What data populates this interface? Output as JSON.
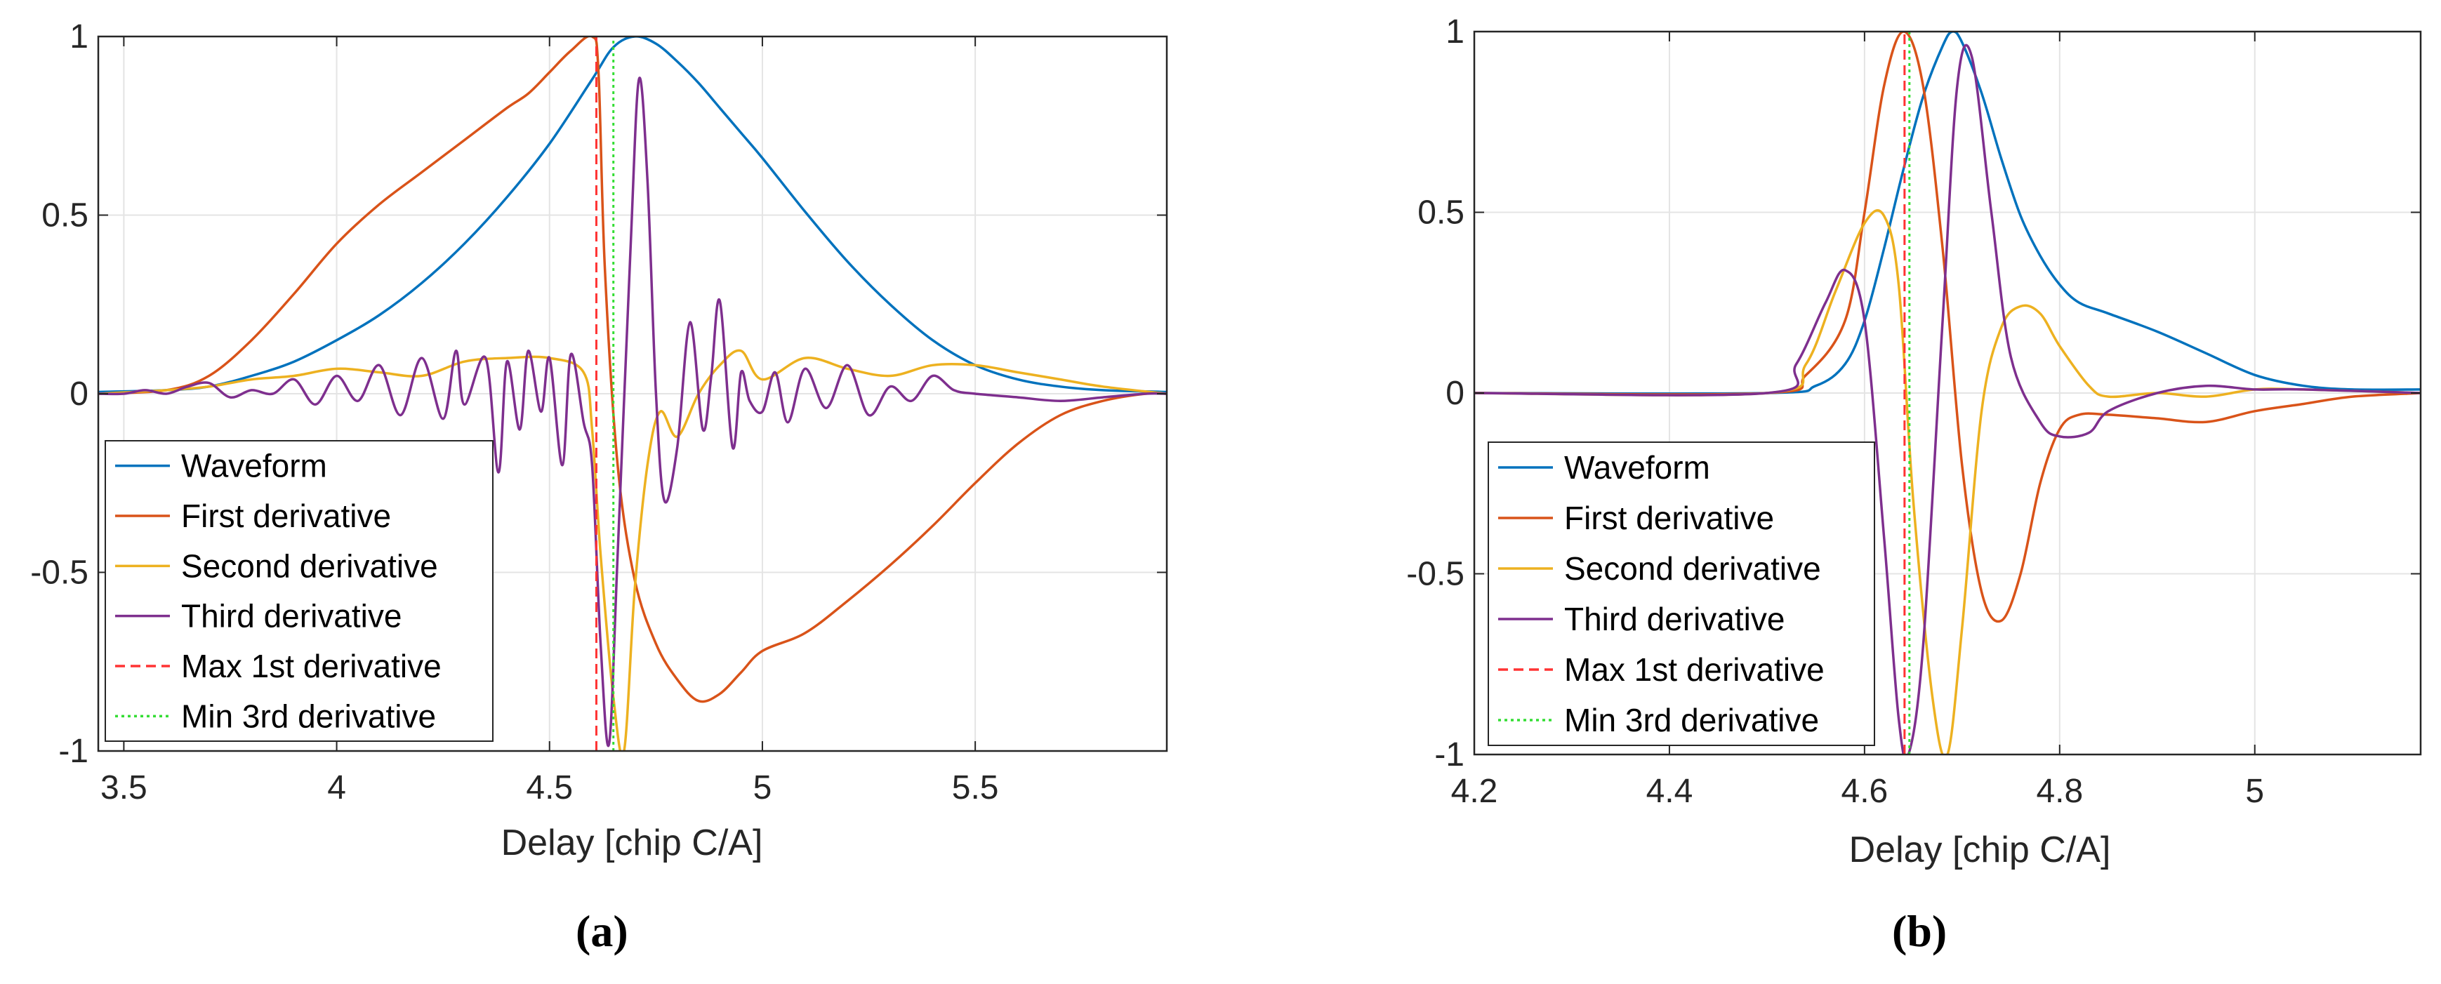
{
  "chart_data": [
    {
      "type": "line",
      "caption": "(a)",
      "xlabel": "Delay [chip C/A]",
      "ylabel": "",
      "xlim": [
        3.44,
        5.95
      ],
      "ylim": [
        -1,
        1
      ],
      "xticks": [
        3.5,
        4,
        4.5,
        5,
        5.5
      ],
      "xtick_labels": [
        "3.5",
        "4",
        "4.5",
        "5",
        "5.5"
      ],
      "yticks": [
        -1,
        -0.5,
        0,
        0.5,
        1
      ],
      "ytick_labels": [
        "-1",
        "-0.5",
        "0",
        "0.5",
        "1"
      ],
      "grid": true,
      "legend_position": "bottom-left",
      "series": [
        {
          "name": "Waveform",
          "color": "#0072BD",
          "style": "solid",
          "x": [
            3.44,
            3.6,
            3.7,
            3.8,
            3.9,
            4.0,
            4.1,
            4.2,
            4.3,
            4.4,
            4.5,
            4.6,
            4.65,
            4.7,
            4.75,
            4.8,
            4.85,
            4.9,
            4.95,
            5.0,
            5.1,
            5.2,
            5.3,
            5.4,
            5.5,
            5.6,
            5.7,
            5.8,
            5.95
          ],
          "y": [
            0.005,
            0.01,
            0.02,
            0.05,
            0.09,
            0.15,
            0.22,
            0.31,
            0.42,
            0.55,
            0.7,
            0.88,
            0.97,
            1.0,
            0.98,
            0.93,
            0.87,
            0.8,
            0.73,
            0.66,
            0.51,
            0.37,
            0.25,
            0.15,
            0.08,
            0.04,
            0.02,
            0.01,
            0.005
          ]
        },
        {
          "name": "First derivative",
          "color": "#D95319",
          "style": "solid",
          "x": [
            3.44,
            3.6,
            3.7,
            3.8,
            3.9,
            4.0,
            4.1,
            4.2,
            4.3,
            4.4,
            4.45,
            4.5,
            4.55,
            4.6,
            4.615,
            4.63,
            4.66,
            4.7,
            4.75,
            4.8,
            4.85,
            4.9,
            4.95,
            5.0,
            5.1,
            5.2,
            5.3,
            5.4,
            5.5,
            5.6,
            5.7,
            5.8,
            5.9,
            5.95
          ],
          "y": [
            0.0,
            0.01,
            0.05,
            0.15,
            0.28,
            0.42,
            0.53,
            0.62,
            0.71,
            0.8,
            0.84,
            0.9,
            0.96,
            1.0,
            0.9,
            0.35,
            -0.2,
            -0.52,
            -0.7,
            -0.8,
            -0.86,
            -0.84,
            -0.78,
            -0.72,
            -0.67,
            -0.58,
            -0.48,
            -0.37,
            -0.25,
            -0.14,
            -0.06,
            -0.02,
            0.0,
            0.0
          ]
        },
        {
          "name": "Second derivative",
          "color": "#EDB120",
          "style": "solid",
          "x": [
            3.44,
            3.6,
            3.7,
            3.8,
            3.9,
            4.0,
            4.1,
            4.2,
            4.3,
            4.4,
            4.5,
            4.58,
            4.6,
            4.62,
            4.65,
            4.675,
            4.7,
            4.73,
            4.76,
            4.8,
            4.85,
            4.9,
            4.95,
            5.0,
            5.1,
            5.2,
            5.3,
            5.4,
            5.5,
            5.6,
            5.7,
            5.8,
            5.95
          ],
          "y": [
            0.0,
            0.01,
            0.02,
            0.04,
            0.05,
            0.07,
            0.06,
            0.05,
            0.09,
            0.1,
            0.1,
            0.06,
            -0.1,
            -0.45,
            -0.85,
            -1.0,
            -0.55,
            -0.2,
            -0.05,
            -0.12,
            0.0,
            0.08,
            0.12,
            0.04,
            0.1,
            0.07,
            0.05,
            0.08,
            0.08,
            0.06,
            0.04,
            0.02,
            0.0
          ]
        },
        {
          "name": "Third derivative",
          "color": "#7E2F8E",
          "style": "solid",
          "x": [
            3.44,
            3.5,
            3.55,
            3.6,
            3.65,
            3.7,
            3.75,
            3.8,
            3.85,
            3.9,
            3.95,
            4.0,
            4.05,
            4.1,
            4.15,
            4.2,
            4.25,
            4.28,
            4.3,
            4.35,
            4.38,
            4.4,
            4.43,
            4.45,
            4.48,
            4.5,
            4.53,
            4.55,
            4.58,
            4.6,
            4.62,
            4.64,
            4.66,
            4.69,
            4.71,
            4.73,
            4.75,
            4.77,
            4.8,
            4.83,
            4.86,
            4.88,
            4.9,
            4.93,
            4.95,
            4.97,
            5.0,
            5.03,
            5.06,
            5.1,
            5.15,
            5.2,
            5.25,
            5.3,
            5.35,
            5.4,
            5.45,
            5.5,
            5.6,
            5.7,
            5.8,
            5.9,
            5.95
          ],
          "y": [
            0.0,
            0.0,
            0.01,
            0.0,
            0.02,
            0.03,
            -0.01,
            0.01,
            0.0,
            0.04,
            -0.03,
            0.05,
            -0.02,
            0.08,
            -0.06,
            0.1,
            -0.07,
            0.12,
            -0.03,
            0.1,
            -0.22,
            0.09,
            -0.1,
            0.12,
            -0.05,
            0.1,
            -0.2,
            0.11,
            -0.08,
            -0.2,
            -0.7,
            -0.98,
            -0.45,
            0.4,
            0.88,
            0.6,
            0.0,
            -0.3,
            -0.15,
            0.2,
            -0.1,
            0.05,
            0.26,
            -0.15,
            0.06,
            -0.02,
            -0.05,
            0.06,
            -0.08,
            0.07,
            -0.04,
            0.08,
            -0.06,
            0.02,
            -0.02,
            0.05,
            0.01,
            0.0,
            -0.01,
            -0.02,
            -0.01,
            0.0,
            0.0
          ]
        },
        {
          "name": "Max 1st derivative",
          "color": "#FF3333",
          "style": "dashed",
          "x": [
            4.61,
            4.61
          ],
          "y": [
            -1,
            1
          ]
        },
        {
          "name": "Min 3rd derivative",
          "color": "#33DD33",
          "style": "dotted",
          "x": [
            4.65,
            4.65
          ],
          "y": [
            -1,
            1
          ]
        }
      ]
    },
    {
      "type": "line",
      "caption": "(b)",
      "xlabel": "Delay [chip C/A]",
      "ylabel": "",
      "xlim": [
        4.2,
        5.17
      ],
      "ylim": [
        -1,
        1
      ],
      "xticks": [
        4.2,
        4.4,
        4.6,
        4.8,
        5
      ],
      "xtick_labels": [
        "4.2",
        "4.4",
        "4.6",
        "4.8",
        "5"
      ],
      "yticks": [
        -1,
        -0.5,
        0,
        0.5,
        1
      ],
      "ytick_labels": [
        "-1",
        "-0.5",
        "0",
        "0.5",
        "1"
      ],
      "grid": true,
      "legend_position": "bottom-left",
      "series": [
        {
          "name": "Waveform",
          "color": "#0072BD",
          "style": "solid",
          "x": [
            4.2,
            4.5,
            4.55,
            4.58,
            4.6,
            4.62,
            4.64,
            4.66,
            4.68,
            4.69,
            4.7,
            4.72,
            4.74,
            4.76,
            4.78,
            4.8,
            4.82,
            4.85,
            4.9,
            4.95,
            5.0,
            5.05,
            5.1,
            5.17
          ],
          "y": [
            0.0,
            0.0,
            0.02,
            0.08,
            0.2,
            0.4,
            0.62,
            0.82,
            0.96,
            1.0,
            0.97,
            0.83,
            0.65,
            0.49,
            0.38,
            0.3,
            0.25,
            0.22,
            0.17,
            0.11,
            0.05,
            0.02,
            0.01,
            0.01
          ]
        },
        {
          "name": "First derivative",
          "color": "#D95319",
          "style": "solid",
          "x": [
            4.2,
            4.5,
            4.54,
            4.58,
            4.6,
            4.62,
            4.64,
            4.66,
            4.68,
            4.7,
            4.72,
            4.74,
            4.76,
            4.78,
            4.8,
            4.82,
            4.85,
            4.9,
            4.95,
            5.0,
            5.05,
            5.1,
            5.17
          ],
          "y": [
            0.0,
            0.0,
            0.05,
            0.2,
            0.5,
            0.85,
            1.0,
            0.85,
            0.4,
            -0.2,
            -0.55,
            -0.63,
            -0.5,
            -0.25,
            -0.1,
            -0.06,
            -0.06,
            -0.07,
            -0.08,
            -0.05,
            -0.03,
            -0.01,
            0.0
          ]
        },
        {
          "name": "Second derivative",
          "color": "#EDB120",
          "style": "solid",
          "x": [
            4.2,
            4.5,
            4.54,
            4.57,
            4.6,
            4.62,
            4.635,
            4.65,
            4.67,
            4.685,
            4.7,
            4.72,
            4.74,
            4.76,
            4.78,
            4.8,
            4.83,
            4.85,
            4.9,
            4.95,
            5.0,
            5.05,
            5.17
          ],
          "y": [
            0.0,
            0.0,
            0.08,
            0.28,
            0.47,
            0.49,
            0.3,
            -0.3,
            -0.85,
            -1.0,
            -0.65,
            -0.05,
            0.18,
            0.24,
            0.22,
            0.13,
            0.02,
            -0.01,
            0.0,
            -0.01,
            0.01,
            0.01,
            0.0
          ]
        },
        {
          "name": "Third derivative",
          "color": "#7E2F8E",
          "style": "solid",
          "x": [
            4.2,
            4.5,
            4.53,
            4.56,
            4.58,
            4.6,
            4.62,
            4.635,
            4.645,
            4.66,
            4.68,
            4.695,
            4.71,
            4.73,
            4.75,
            4.78,
            4.8,
            4.83,
            4.85,
            4.9,
            4.95,
            5.0,
            5.05,
            5.17
          ],
          "y": [
            0.0,
            0.0,
            0.08,
            0.25,
            0.34,
            0.2,
            -0.4,
            -0.9,
            -1.0,
            -0.7,
            0.2,
            0.85,
            0.93,
            0.5,
            0.1,
            -0.08,
            -0.12,
            -0.11,
            -0.05,
            0.0,
            0.02,
            0.01,
            0.01,
            0.0
          ]
        },
        {
          "name": "Max 1st derivative",
          "color": "#FF3333",
          "style": "dashed",
          "x": [
            4.641,
            4.641
          ],
          "y": [
            -1,
            1
          ]
        },
        {
          "name": "Min 3rd derivative",
          "color": "#33DD33",
          "style": "dotted",
          "x": [
            4.646,
            4.646
          ],
          "y": [
            -1,
            1
          ]
        }
      ]
    }
  ]
}
